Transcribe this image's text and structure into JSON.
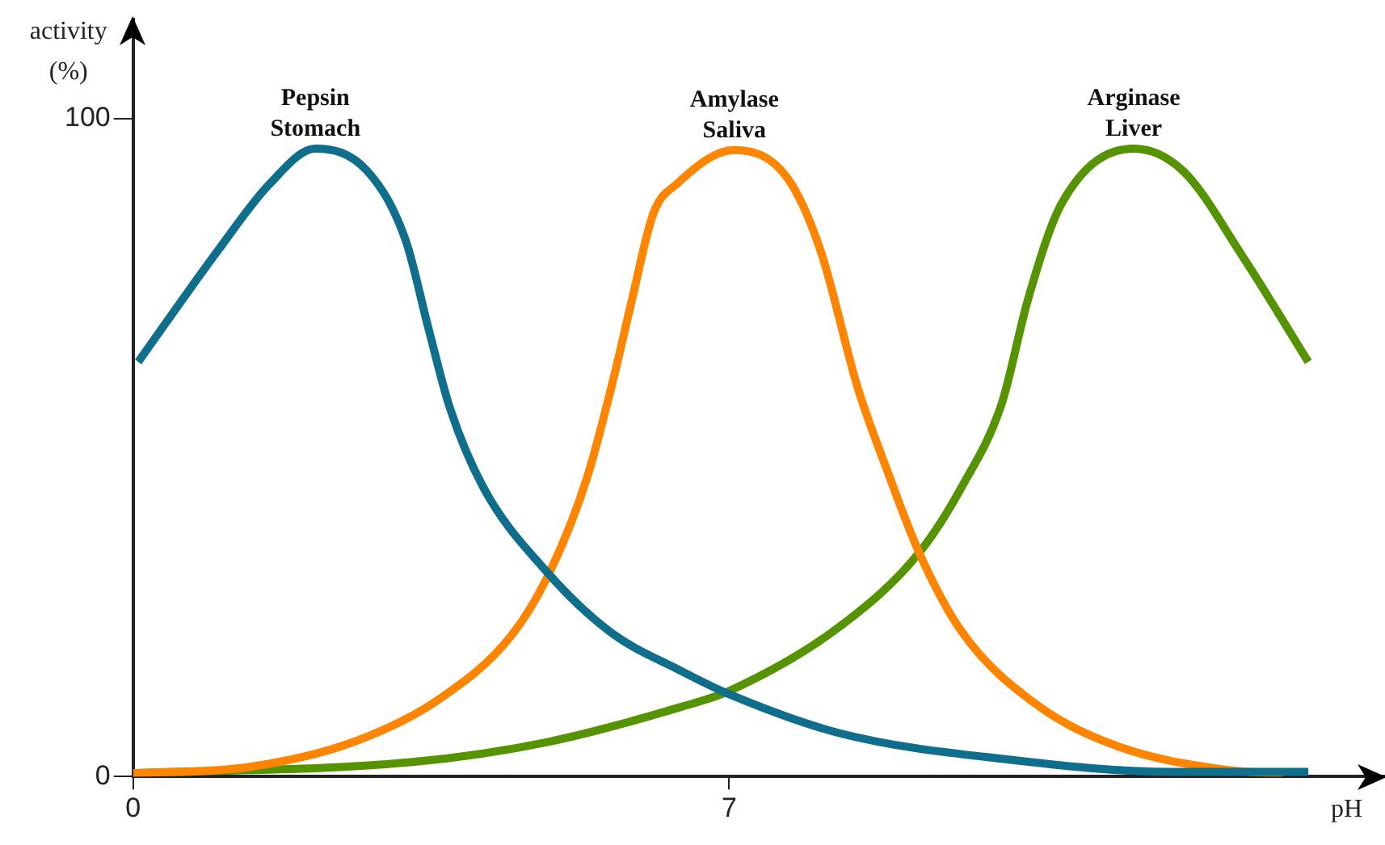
{
  "chart_data": {
    "type": "line",
    "xlabel": "pH",
    "ylabel": "activity (%)",
    "xlim": [
      0,
      14.7
    ],
    "ylim": [
      0,
      115
    ],
    "xticks": [
      0,
      7
    ],
    "yticks": [
      0,
      100
    ],
    "grid": false,
    "legend": false,
    "series": [
      {
        "name": "Pepsin Stomach",
        "color": "#0e6e8c",
        "x": [
          0.06,
          1.0,
          1.6,
          2.14,
          2.75,
          3.2,
          3.47,
          3.72,
          4.11,
          4.83,
          5.6,
          6.44,
          7.0,
          8.32,
          10.26,
          12.2,
          13.8
        ],
        "values": [
          63,
          80,
          90,
          95.4,
          92,
          81.5,
          68,
          56,
          44,
          31.5,
          22,
          16,
          12.5,
          6.5,
          2.6,
          0.7,
          0.7
        ]
      },
      {
        "name": "Amylase Saliva",
        "color": "#ff8400",
        "x": [
          0,
          1.34,
          2.6,
          3.6,
          4.44,
          4.89,
          5.33,
          5.66,
          5.86,
          6.11,
          6.38,
          7.06,
          7.68,
          8.07,
          8.51,
          8.84,
          9.23,
          9.73,
          10.6,
          11.56,
          12.84,
          13.5
        ],
        "values": [
          0.5,
          1.4,
          5.3,
          11.8,
          21.4,
          31,
          45.4,
          61.5,
          72.6,
          85.6,
          90,
          95.2,
          91,
          80,
          59,
          47,
          34,
          22,
          11,
          4.6,
          1,
          0.4
        ]
      },
      {
        "name": "Arginase Liver",
        "color": "#559300",
        "x": [
          0,
          3.28,
          4.89,
          6.44,
          7.0,
          8.32,
          9.23,
          9.73,
          10.2,
          10.51,
          10.9,
          11.75,
          12.33,
          13.03,
          13.8
        ],
        "values": [
          0.5,
          2.2,
          5.3,
          10.6,
          13,
          23,
          34,
          44,
          56.7,
          72.6,
          87,
          95.4,
          92,
          79,
          63
        ]
      }
    ]
  }
}
